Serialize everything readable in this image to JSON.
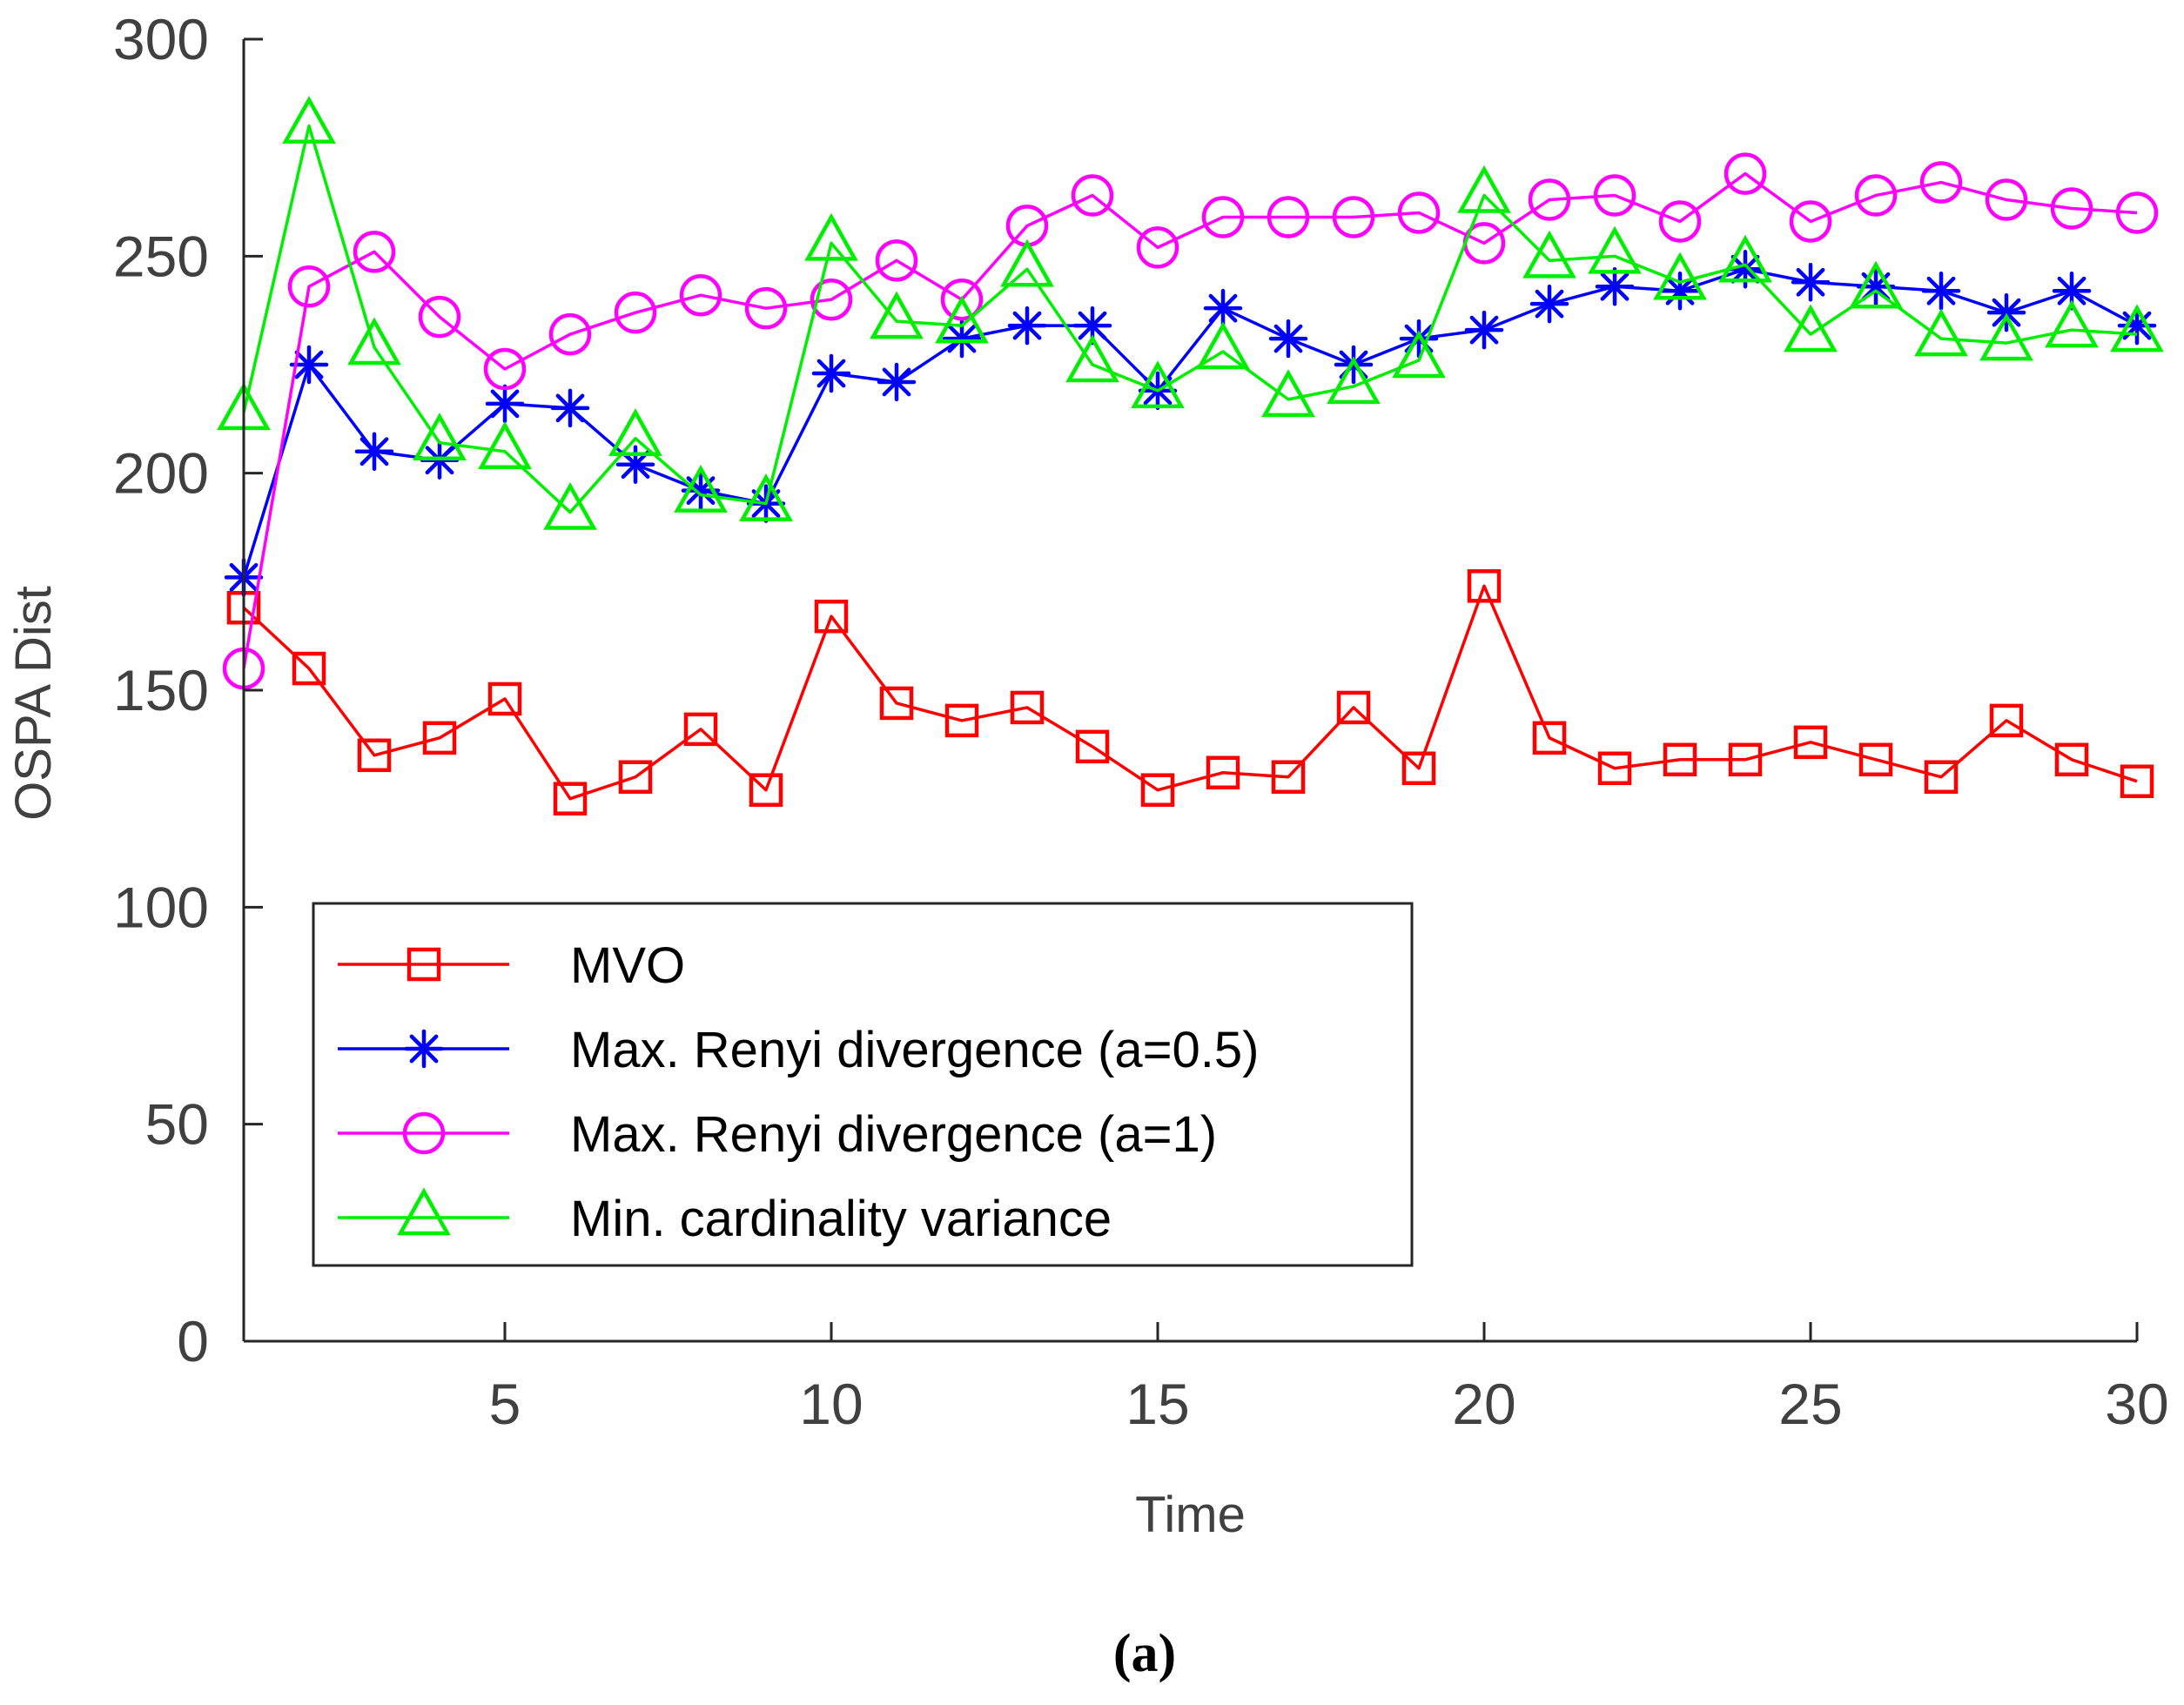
{
  "chart_data": {
    "type": "line",
    "xlabel": "Time",
    "ylabel": "OSPA Dist",
    "caption": "(a)",
    "xlim": [
      1,
      30
    ],
    "ylim": [
      0,
      300
    ],
    "xticks": [
      5,
      10,
      15,
      20,
      25,
      30
    ],
    "yticks": [
      0,
      50,
      100,
      150,
      200,
      250,
      300
    ],
    "grid": false,
    "legend_position": "lower-left",
    "x": [
      1,
      2,
      3,
      4,
      5,
      6,
      7,
      8,
      9,
      10,
      11,
      12,
      13,
      14,
      15,
      16,
      17,
      18,
      19,
      20,
      21,
      22,
      23,
      24,
      25,
      26,
      27,
      28,
      29,
      30
    ],
    "series": [
      {
        "name": "MVO",
        "color": "#ff0000",
        "marker": "square",
        "values": [
          169,
          155,
          135,
          139,
          148,
          125,
          130,
          141,
          127,
          167,
          147,
          143,
          146,
          137,
          127,
          131,
          130,
          146,
          132,
          174,
          139,
          132,
          134,
          134,
          138,
          134,
          130,
          143,
          134,
          129
        ]
      },
      {
        "name": "Max. Renyi divergence (a=0.5)",
        "color": "#0000ff",
        "marker": "asterisk",
        "values": [
          176,
          225,
          205,
          203,
          216,
          215,
          202,
          196,
          193,
          223,
          221,
          231,
          234,
          234,
          219,
          238,
          231,
          225,
          231,
          233,
          239,
          243,
          242,
          247,
          244,
          243,
          242,
          237,
          242,
          234
        ]
      },
      {
        "name": "Max. Renyi divergence (a=1)",
        "color": "#ff00ff",
        "marker": "circle",
        "values": [
          155,
          243,
          251,
          236,
          224,
          232,
          237,
          241,
          238,
          240,
          249,
          240,
          257,
          264,
          252,
          259,
          259,
          259,
          260,
          253,
          263,
          264,
          258,
          269,
          258,
          264,
          267,
          263,
          261,
          260
        ]
      },
      {
        "name": "Min. cardinality variance",
        "color": "#00ee00",
        "marker": "triangle",
        "values": [
          214,
          280,
          229,
          207,
          205,
          191,
          208,
          195,
          193,
          253,
          235,
          234,
          247,
          225,
          219,
          228,
          217,
          220,
          226,
          264,
          249,
          250,
          244,
          248,
          232,
          242,
          231,
          230,
          233,
          232
        ]
      }
    ]
  }
}
